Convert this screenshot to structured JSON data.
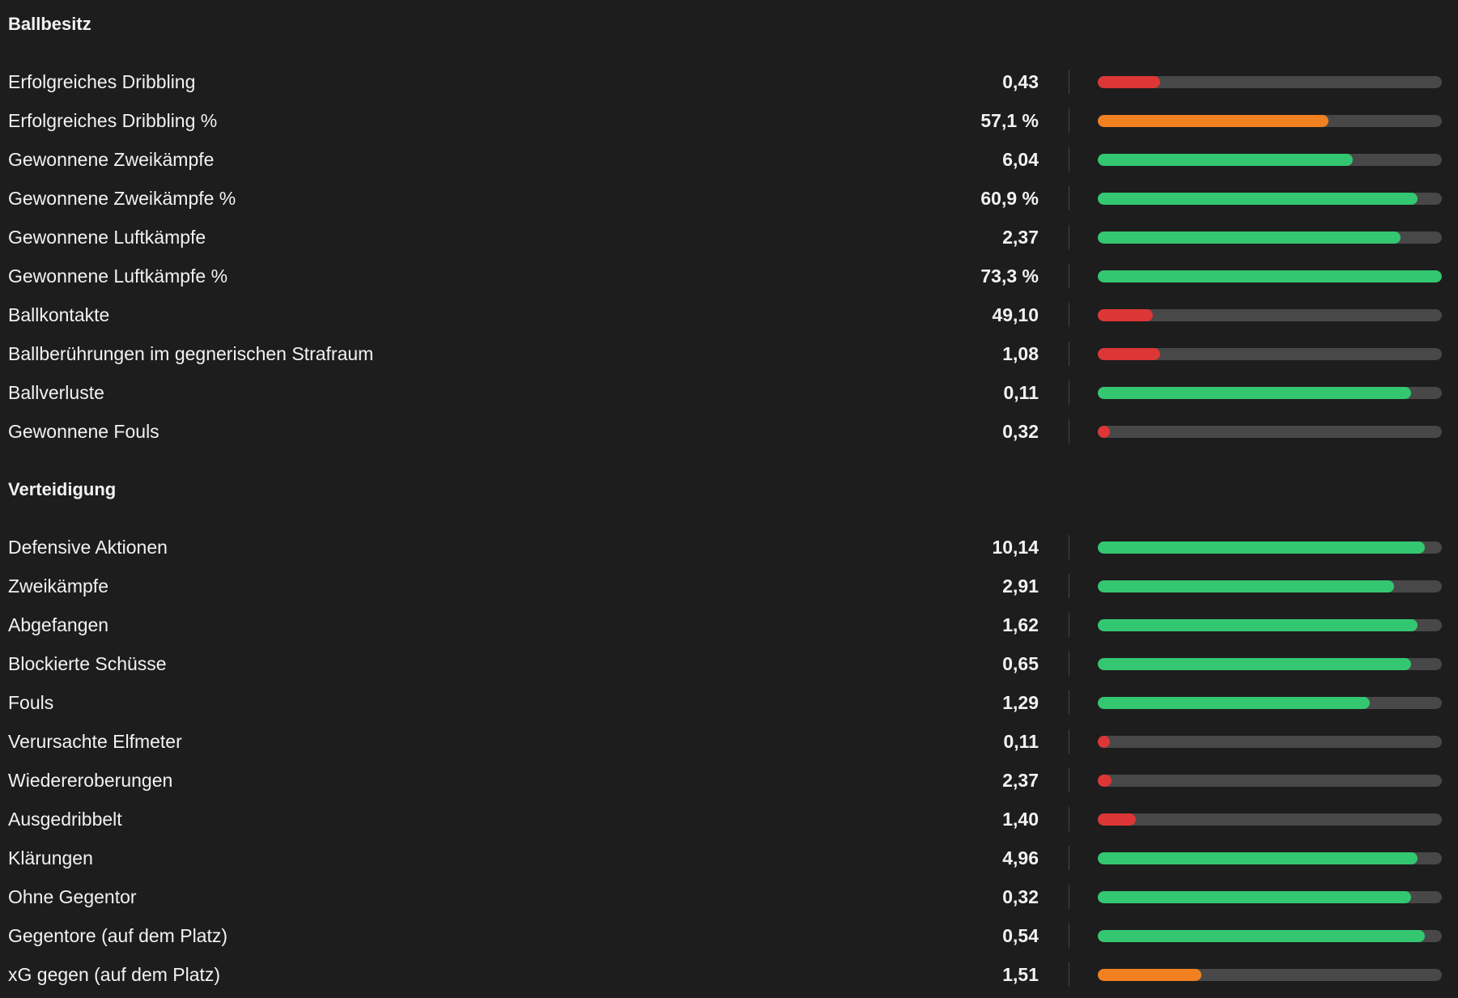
{
  "colors": {
    "red": "#dd3636",
    "orange": "#f08020",
    "green": "#33c771",
    "track": "#484848",
    "background": "#1d1d1d"
  },
  "sections": [
    {
      "title": "Ballbesitz",
      "rows": [
        {
          "label": "Erfolgreiches Dribbling",
          "value": "0,43",
          "fill": 0.18,
          "color": "red"
        },
        {
          "label": "Erfolgreiches Dribbling %",
          "value": "57,1 %",
          "fill": 0.67,
          "color": "orange"
        },
        {
          "label": "Gewonnene Zweikämpfe",
          "value": "6,04",
          "fill": 0.74,
          "color": "green"
        },
        {
          "label": "Gewonnene Zweikämpfe %",
          "value": "60,9 %",
          "fill": 0.93,
          "color": "green"
        },
        {
          "label": "Gewonnene Luftkämpfe",
          "value": "2,37",
          "fill": 0.88,
          "color": "green"
        },
        {
          "label": "Gewonnene Luftkämpfe %",
          "value": "73,3 %",
          "fill": 1.0,
          "color": "green"
        },
        {
          "label": "Ballkontakte",
          "value": "49,10",
          "fill": 0.16,
          "color": "red"
        },
        {
          "label": "Ballberührungen im gegnerischen Strafraum",
          "value": "1,08",
          "fill": 0.18,
          "color": "red"
        },
        {
          "label": "Ballverluste",
          "value": "0,11",
          "fill": 0.91,
          "color": "green"
        },
        {
          "label": "Gewonnene Fouls",
          "value": "0,32",
          "fill": 0.03,
          "color": "red"
        }
      ]
    },
    {
      "title": "Verteidigung",
      "rows": [
        {
          "label": "Defensive Aktionen",
          "value": "10,14",
          "fill": 0.95,
          "color": "green"
        },
        {
          "label": "Zweikämpfe",
          "value": "2,91",
          "fill": 0.86,
          "color": "green"
        },
        {
          "label": "Abgefangen",
          "value": "1,62",
          "fill": 0.93,
          "color": "green"
        },
        {
          "label": "Blockierte Schüsse",
          "value": "0,65",
          "fill": 0.91,
          "color": "green"
        },
        {
          "label": "Fouls",
          "value": "1,29",
          "fill": 0.79,
          "color": "green"
        },
        {
          "label": "Verursachte Elfmeter",
          "value": "0,11",
          "fill": 0.03,
          "color": "red"
        },
        {
          "label": "Wiedereroberungen",
          "value": "2,37",
          "fill": 0.04,
          "color": "red"
        },
        {
          "label": "Ausgedribbelt",
          "value": "1,40",
          "fill": 0.11,
          "color": "red"
        },
        {
          "label": "Klärungen",
          "value": "4,96",
          "fill": 0.93,
          "color": "green"
        },
        {
          "label": "Ohne Gegentor",
          "value": "0,32",
          "fill": 0.91,
          "color": "green"
        },
        {
          "label": "Gegentore (auf dem Platz)",
          "value": "0,54",
          "fill": 0.95,
          "color": "green"
        },
        {
          "label": "xG gegen (auf dem Platz)",
          "value": "1,51",
          "fill": 0.3,
          "color": "orange"
        }
      ]
    }
  ]
}
